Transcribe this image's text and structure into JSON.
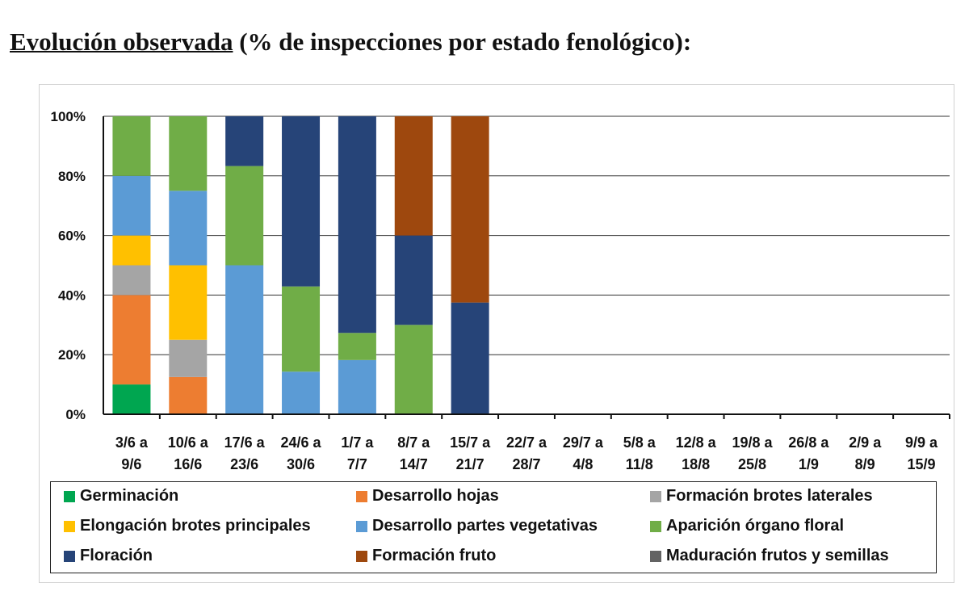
{
  "title": {
    "underlined": "Evolución observada",
    "rest": " (% de inspecciones por estado fenológico):"
  },
  "chart_data": {
    "type": "bar",
    "stacked": true,
    "ylim": [
      0,
      100
    ],
    "yticks": [
      "0%",
      "20%",
      "40%",
      "60%",
      "80%",
      "100%"
    ],
    "grid": true,
    "legend_position": "bottom",
    "categories": [
      [
        "3/6 a",
        "9/6"
      ],
      [
        "10/6 a",
        "16/6"
      ],
      [
        "17/6 a",
        "23/6"
      ],
      [
        "24/6 a",
        "30/6"
      ],
      [
        "1/7 a",
        "7/7"
      ],
      [
        "8/7 a",
        "14/7"
      ],
      [
        "15/7 a",
        "21/7"
      ],
      [
        "22/7 a",
        "28/7"
      ],
      [
        "29/7 a",
        "4/8"
      ],
      [
        "5/8 a",
        "11/8"
      ],
      [
        "12/8 a",
        "18/8"
      ],
      [
        "19/8 a",
        "25/8"
      ],
      [
        "26/8 a",
        "1/9"
      ],
      [
        "2/9 a",
        "8/9"
      ],
      [
        "9/9 a",
        "15/9"
      ]
    ],
    "series": [
      {
        "name": "Germinación",
        "color": "#00a650",
        "values": [
          10,
          0,
          0,
          0,
          0,
          0,
          0,
          0,
          0,
          0,
          0,
          0,
          0,
          0,
          0
        ]
      },
      {
        "name": "Desarrollo hojas",
        "color": "#ed7d31",
        "values": [
          30,
          12.5,
          0,
          0,
          0,
          0,
          0,
          0,
          0,
          0,
          0,
          0,
          0,
          0,
          0
        ]
      },
      {
        "name": "Formación brotes laterales",
        "color": "#a5a5a5",
        "values": [
          10,
          12.5,
          0,
          0,
          0,
          0,
          0,
          0,
          0,
          0,
          0,
          0,
          0,
          0,
          0
        ]
      },
      {
        "name": "Elongación brotes principales",
        "color": "#ffc000",
        "values": [
          10,
          25,
          0,
          0,
          0,
          0,
          0,
          0,
          0,
          0,
          0,
          0,
          0,
          0,
          0
        ]
      },
      {
        "name": "Desarrollo partes vegetativas",
        "color": "#5b9bd5",
        "values": [
          20,
          25,
          50,
          14.3,
          18.2,
          0,
          0,
          0,
          0,
          0,
          0,
          0,
          0,
          0,
          0
        ]
      },
      {
        "name": "Aparición órgano floral",
        "color": "#70ad47",
        "values": [
          20,
          25,
          33.3,
          28.6,
          9.1,
          30,
          0,
          0,
          0,
          0,
          0,
          0,
          0,
          0,
          0
        ]
      },
      {
        "name": "Floración",
        "color": "#264478",
        "values": [
          0,
          0,
          16.7,
          57.1,
          72.7,
          30,
          37.5,
          0,
          0,
          0,
          0,
          0,
          0,
          0,
          0
        ]
      },
      {
        "name": "Formación fruto",
        "color": "#9e480e",
        "values": [
          0,
          0,
          0,
          0,
          0,
          40,
          62.5,
          0,
          0,
          0,
          0,
          0,
          0,
          0,
          0
        ]
      },
      {
        "name": "Maduración frutos y semillas",
        "color": "#636363",
        "values": [
          0,
          0,
          0,
          0,
          0,
          0,
          0,
          0,
          0,
          0,
          0,
          0,
          0,
          0,
          0
        ]
      }
    ]
  }
}
